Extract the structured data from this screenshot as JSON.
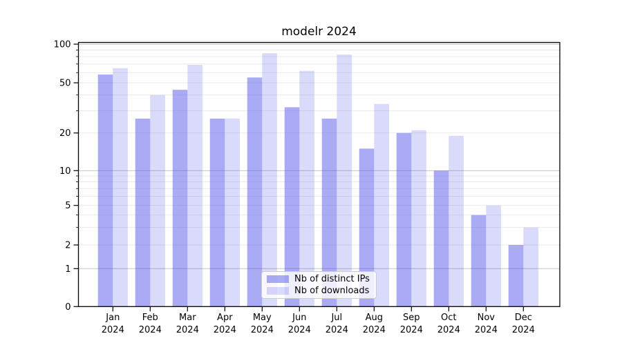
{
  "title": "modelr 2024",
  "chart_data": {
    "type": "bar",
    "title": "modelr 2024",
    "categories": [
      "Jan 2024",
      "Feb 2024",
      "Mar 2024",
      "Apr 2024",
      "May 2024",
      "Jun 2024",
      "Jul 2024",
      "Aug 2024",
      "Sep 2024",
      "Oct 2024",
      "Nov 2024",
      "Dec 2024"
    ],
    "series": [
      {
        "name": "Nb of distinct IPs",
        "color": "#4545e8",
        "opacity": 0.45,
        "values": [
          58,
          26,
          44,
          26,
          55,
          32,
          26,
          15,
          20,
          10,
          4,
          2
        ]
      },
      {
        "name": "Nb of downloads",
        "color": "#4545e8",
        "opacity": 0.2,
        "values": [
          65,
          40,
          69,
          26,
          85,
          62,
          83,
          34,
          21,
          19,
          5,
          3
        ]
      }
    ],
    "yscale": "symlog",
    "yticks": [
      0,
      1,
      2,
      5,
      10,
      20,
      50,
      100
    ],
    "minor_yticks": [
      3,
      4,
      6,
      7,
      8,
      9,
      30,
      40,
      60,
      70,
      80,
      90
    ],
    "major_grid_values": [
      1,
      10,
      100
    ],
    "ylim": [
      0,
      103
    ],
    "grid": true,
    "legend_position": "lower center"
  },
  "colors": {
    "axis": "#000000",
    "major_grid": "#bdbdbd",
    "minor_grid": "#e8e8e8",
    "ips_bar_rendered": "#a9a9f3",
    "downloads_bar_rendered": "#d8d8f8",
    "legend_border": "#cccccc"
  }
}
